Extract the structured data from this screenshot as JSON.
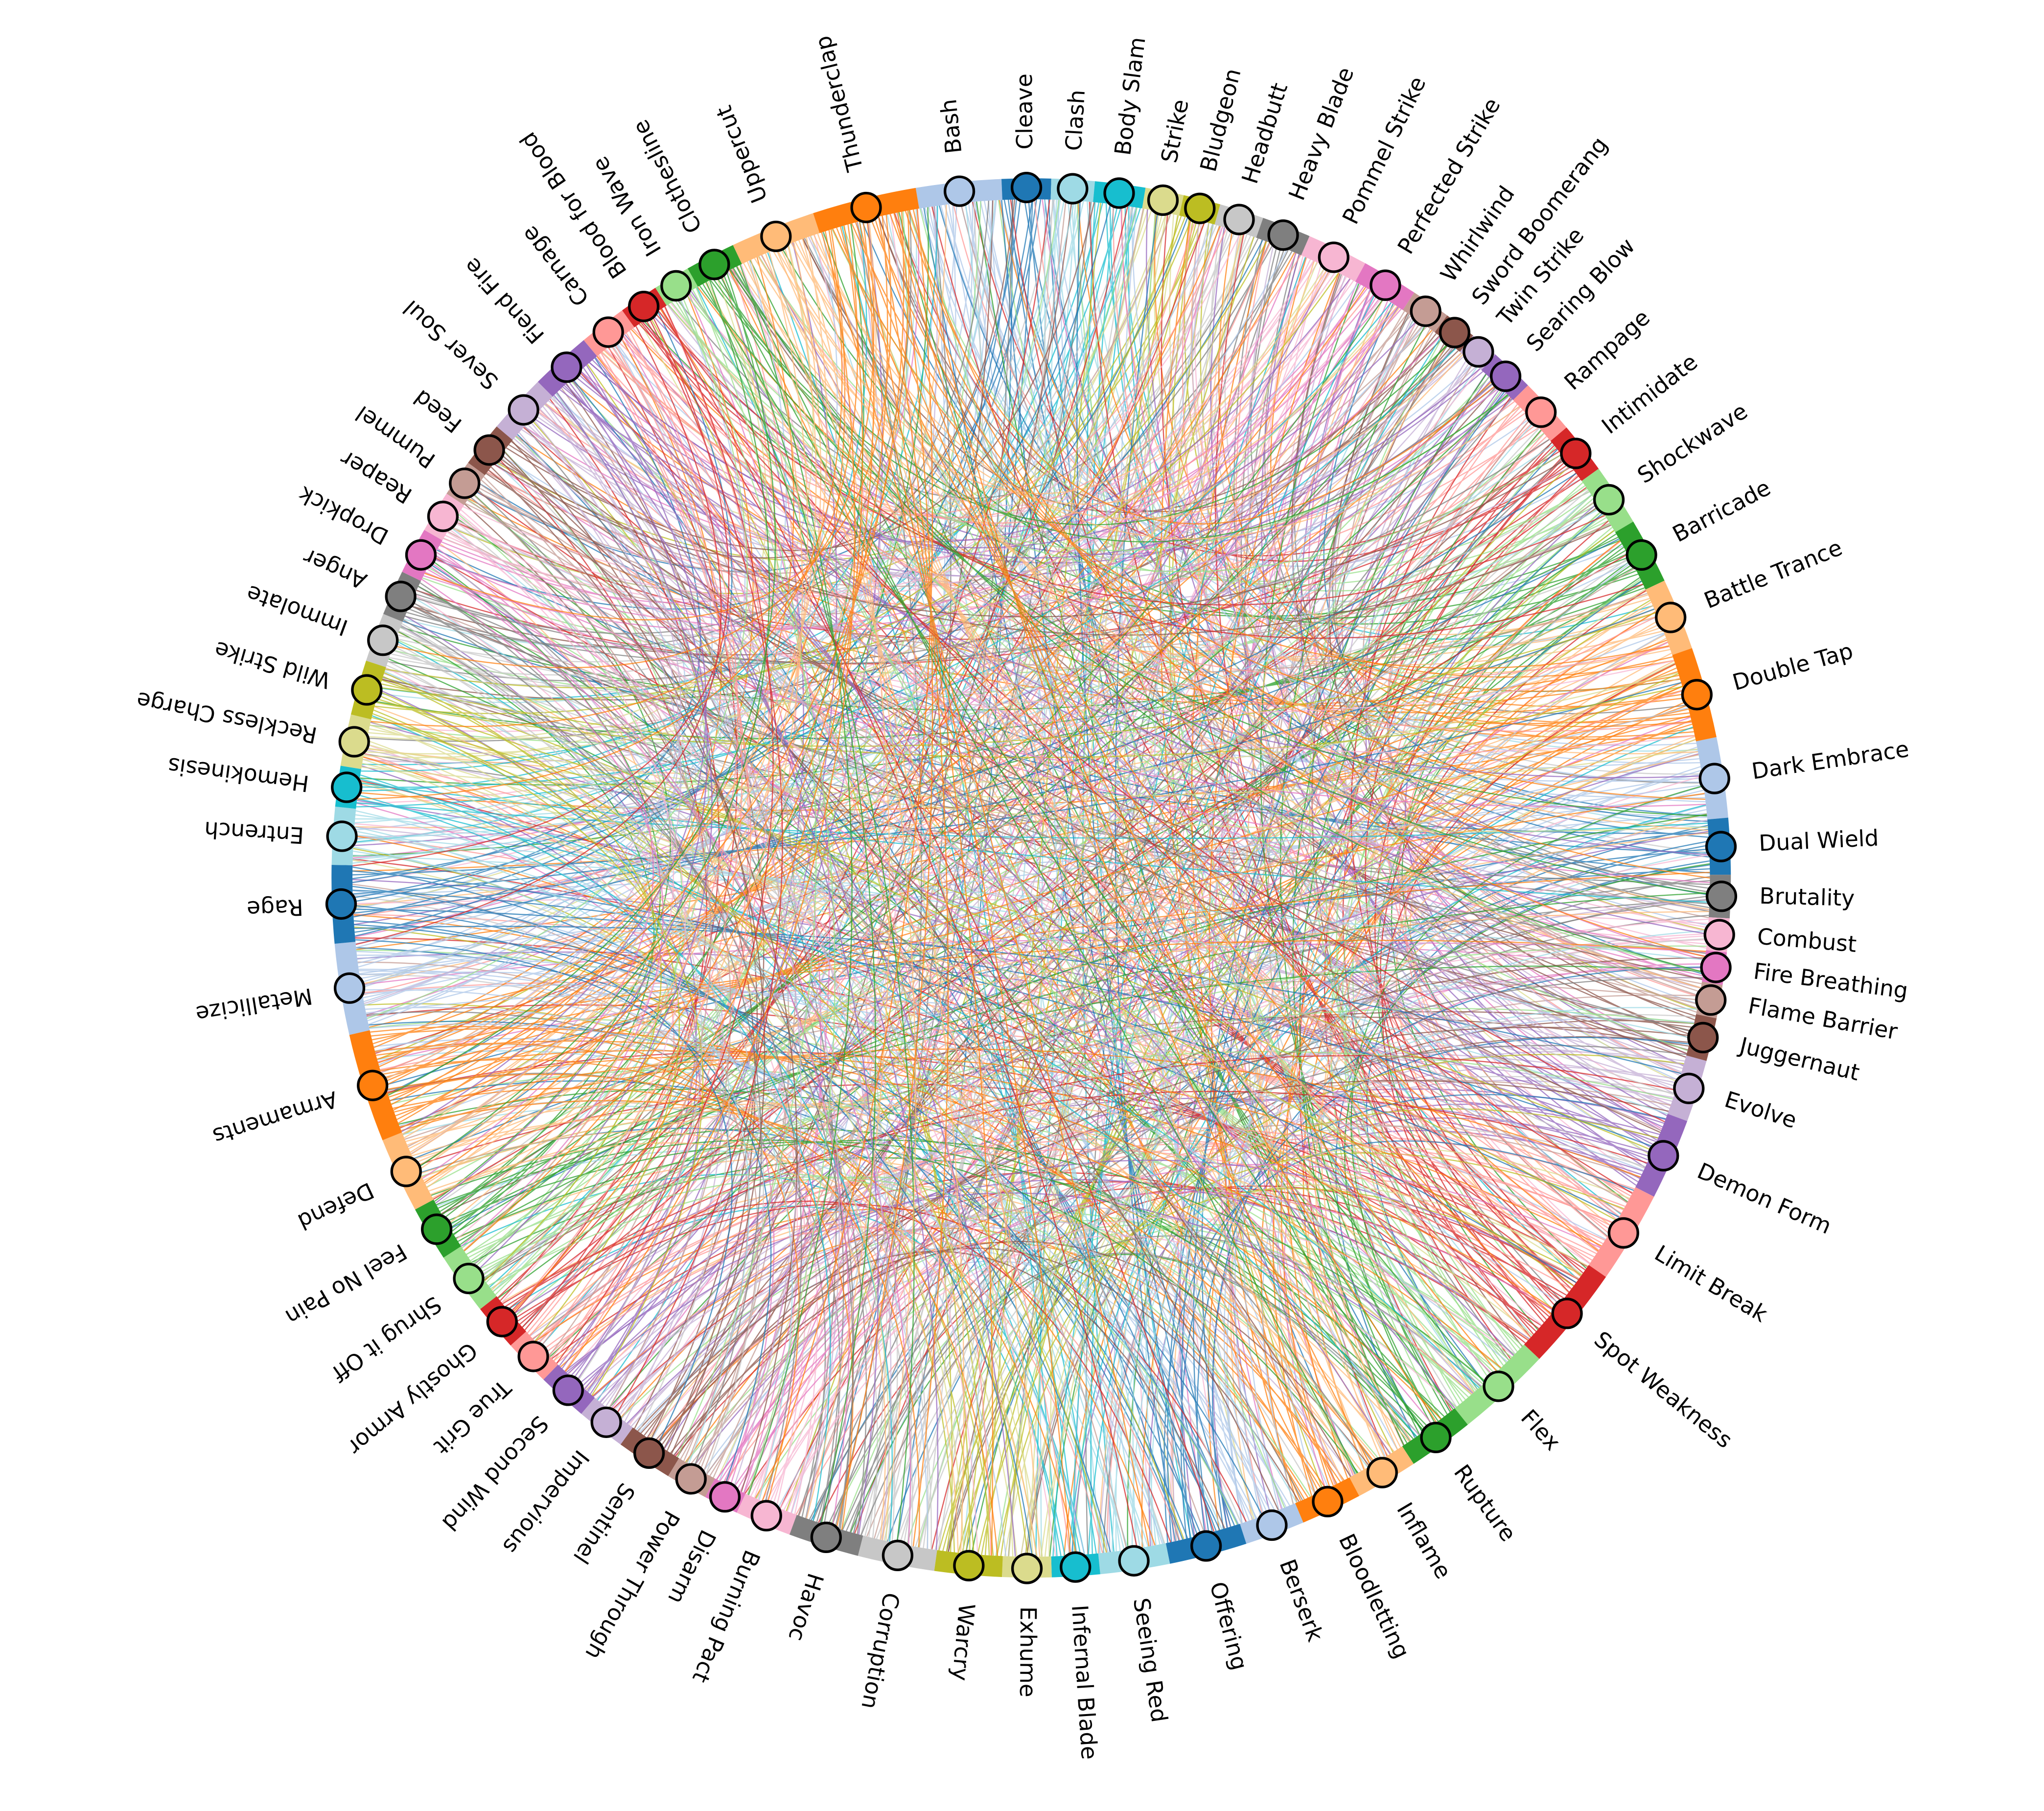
{
  "chart_data": {
    "type": "chord",
    "categories": [
      "Bash",
      "Cleave",
      "Clash",
      "Body Slam",
      "Strike",
      "Bludgeon",
      "Headbutt",
      "Heavy Blade",
      "Pommel Strike",
      "Perfected Strike",
      "Whirlwind",
      "Sword Boomerang",
      "Twin Strike",
      "Searing Blow",
      "Rampage",
      "Intimidate",
      "Shockwave",
      "Barricade",
      "Battle Trance",
      "Double Tap",
      "Dark Embrace",
      "Dual Wield",
      "Brutality",
      "Combust",
      "Fire Breathing",
      "Flame Barrier",
      "Juggernaut",
      "Evolve",
      "Demon Form",
      "Limit Break",
      "Spot Weakness",
      "Flex",
      "Rupture",
      "Inflame",
      "Bloodletting",
      "Berserk",
      "Offering",
      "Seeing Red",
      "Infernal Blade",
      "Exhume",
      "Warcry",
      "Corruption",
      "Havoc",
      "Burning Pact",
      "Disarm",
      "Power Through",
      "Sentinel",
      "Impervious",
      "Second Wind",
      "True Grit",
      "Ghostly Armor",
      "Shrug it Off",
      "Feel No Pain",
      "Defend",
      "Armaments",
      "Metallicize",
      "Rage",
      "Entrench",
      "Hemokinesis",
      "Reckless Charge",
      "Wild Strike",
      "Immolate",
      "Anger",
      "Dropkick",
      "Reaper",
      "Pummel",
      "Feed",
      "Sever Soul",
      "Fiend Fire",
      "Carnage",
      "Blood for Blood",
      "Iron Wave",
      "Clothesline",
      "Uppercut",
      "Thunderclap"
    ],
    "values": [
      7.1,
      4.1,
      3.6,
      4.2,
      3.2,
      3.1,
      3.7,
      4.1,
      5.1,
      4.7,
      3.3,
      2.7,
      2.4,
      3.7,
      4.7,
      4.3,
      5.2,
      5.5,
      6.0,
      7.6,
      6.7,
      4.7,
      3.6,
      2.8,
      2.7,
      2.8,
      3.6,
      5.2,
      6.8,
      7.7,
      8.7,
      8.0,
      5.5,
      5.2,
      5.1,
      5.0,
      6.5,
      5.8,
      4.0,
      4.1,
      5.6,
      6.4,
      5.9,
      4.7,
      2.9,
      3.5,
      4.7,
      4.1,
      4.2,
      3.9,
      3.9,
      5.2,
      4.6,
      6.3,
      9.1,
      7.6,
      6.5,
      4.8,
      3.4,
      4.3,
      4.6,
      4.1,
      3.8,
      3.9,
      3.5,
      3.1,
      3.8,
      5.0,
      5.1,
      4.0,
      3.3,
      3.1,
      4.2,
      7.1,
      8.7
    ],
    "colors": [
      "#aec7e8",
      "#1f77b4",
      "#9edae5",
      "#17becf",
      "#dbdb8d",
      "#bcbd22",
      "#c7c7c7",
      "#7f7f7f",
      "#f7b6d2",
      "#e377c2",
      "#c49c94",
      "#8c564b",
      "#c5b0d5",
      "#9467bd",
      "#ff9896",
      "#d62728",
      "#98df8a",
      "#2ca02c",
      "#ffbb78",
      "#ff7f0e",
      "#aec7e8",
      "#1f77b4",
      "#7f7f7f",
      "#f7b6d2",
      "#e377c2",
      "#c49c94",
      "#8c564b",
      "#c5b0d5",
      "#9467bd",
      "#ff9896",
      "#d62728",
      "#98df8a",
      "#2ca02c",
      "#ffbb78",
      "#ff7f0e",
      "#aec7e8",
      "#1f77b4",
      "#9edae5",
      "#17becf",
      "#dbdb8d",
      "#bcbd22",
      "#c7c7c7",
      "#7f7f7f",
      "#f7b6d2",
      "#e377c2",
      "#c49c94",
      "#8c564b",
      "#c5b0d5",
      "#9467bd",
      "#ff9896",
      "#d62728",
      "#98df8a",
      "#2ca02c",
      "#ffbb78",
      "#ff7f0e",
      "#aec7e8",
      "#1f77b4",
      "#9edae5",
      "#17becf",
      "#dbdb8d",
      "#bcbd22",
      "#c7c7c7",
      "#7f7f7f",
      "#e377c2",
      "#f7b6d2",
      "#c49c94",
      "#8c564b",
      "#c5b0d5",
      "#9467bd",
      "#ff9896",
      "#d62728",
      "#98df8a",
      "#2ca02c",
      "#ffbb78",
      "#ff7f0e"
    ]
  }
}
